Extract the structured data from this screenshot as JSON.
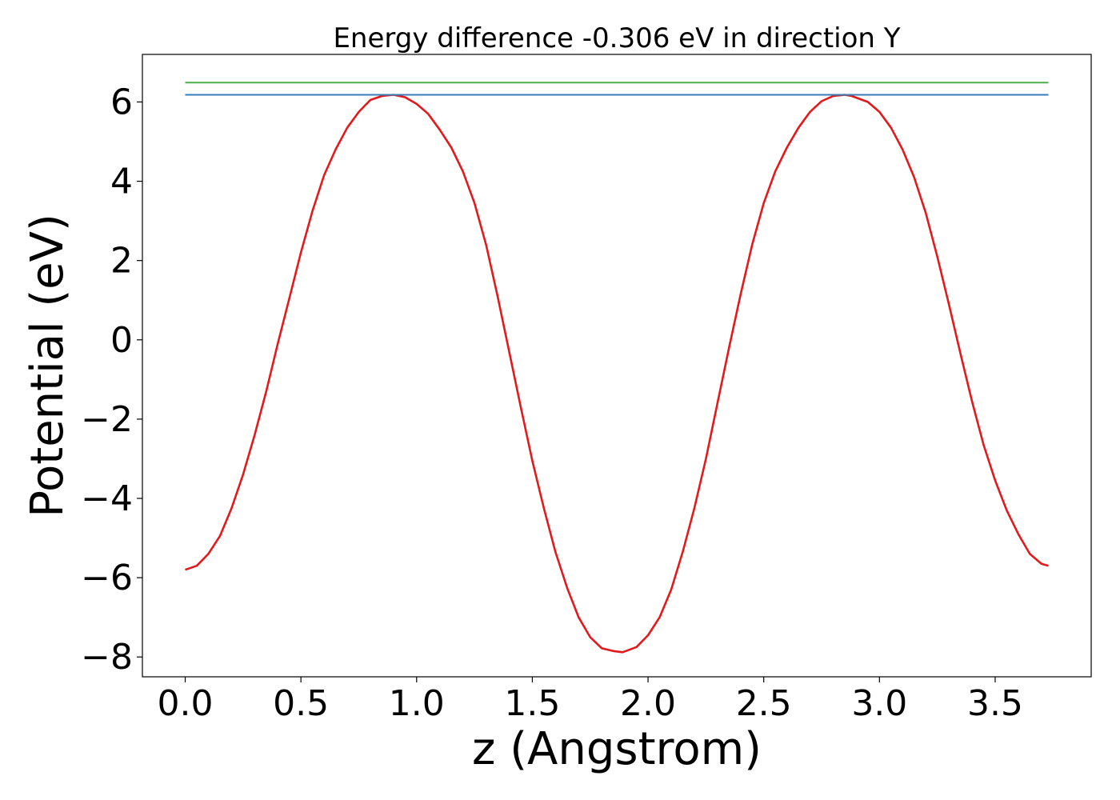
{
  "chart_data": {
    "type": "line",
    "title": "Energy difference -0.306 eV in direction Y",
    "xlabel": "z (Angstrom)",
    "ylabel": "Potential (eV)",
    "xlim": [
      -0.185,
      3.915
    ],
    "ylim": [
      -8.5,
      7.2
    ],
    "xticks": [
      0.0,
      0.5,
      1.0,
      1.5,
      2.0,
      2.5,
      3.0,
      3.5
    ],
    "xtick_labels": [
      "0.0",
      "0.5",
      "1.0",
      "1.5",
      "2.0",
      "2.5",
      "3.0",
      "3.5"
    ],
    "yticks": [
      -8,
      -6,
      -4,
      -2,
      0,
      2,
      4,
      6
    ],
    "ytick_labels": [
      "−8",
      "−6",
      "−4",
      "−2",
      "0",
      "2",
      "4",
      "6"
    ],
    "grid": false,
    "series": [
      {
        "color": "#e31a1c",
        "x": [
          0.0,
          0.05,
          0.1,
          0.15,
          0.2,
          0.25,
          0.3,
          0.35,
          0.4,
          0.45,
          0.5,
          0.55,
          0.6,
          0.65,
          0.7,
          0.75,
          0.8,
          0.85,
          0.9,
          0.95,
          1.0,
          1.05,
          1.1,
          1.15,
          1.2,
          1.25,
          1.3,
          1.35,
          1.4,
          1.45,
          1.5,
          1.55,
          1.6,
          1.65,
          1.7,
          1.75,
          1.8,
          1.85,
          1.89,
          1.95,
          2.0,
          2.05,
          2.1,
          2.15,
          2.2,
          2.25,
          2.3,
          2.35,
          2.4,
          2.45,
          2.5,
          2.55,
          2.6,
          2.65,
          2.7,
          2.75,
          2.8,
          2.85,
          2.88,
          2.95,
          3.0,
          3.05,
          3.1,
          3.15,
          3.2,
          3.25,
          3.3,
          3.35,
          3.4,
          3.45,
          3.5,
          3.55,
          3.6,
          3.65,
          3.7,
          3.73
        ],
        "y": [
          -5.8,
          -5.7,
          -5.4,
          -4.95,
          -4.25,
          -3.4,
          -2.4,
          -1.3,
          -0.1,
          1.05,
          2.2,
          3.25,
          4.15,
          4.8,
          5.35,
          5.75,
          6.05,
          6.15,
          6.18,
          6.12,
          5.95,
          5.7,
          5.3,
          4.85,
          4.25,
          3.45,
          2.4,
          1.1,
          -0.3,
          -1.7,
          -3.05,
          -4.25,
          -5.35,
          -6.25,
          -7.0,
          -7.5,
          -7.78,
          -7.85,
          -7.88,
          -7.75,
          -7.45,
          -7.0,
          -6.3,
          -5.35,
          -4.25,
          -3.0,
          -1.6,
          -0.2,
          1.15,
          2.4,
          3.45,
          4.25,
          4.85,
          5.35,
          5.75,
          6.02,
          6.15,
          6.18,
          6.15,
          6.0,
          5.75,
          5.35,
          4.8,
          4.1,
          3.2,
          2.1,
          0.9,
          -0.35,
          -1.55,
          -2.65,
          -3.55,
          -4.3,
          -4.9,
          -5.4,
          -5.65,
          -5.7
        ]
      },
      {
        "color": "#4daf4a",
        "x": [
          0.0,
          3.73
        ],
        "y": [
          6.49,
          6.49
        ]
      },
      {
        "color": "#377eb8",
        "x": [
          0.0,
          3.73
        ],
        "y": [
          6.18,
          6.18
        ]
      }
    ]
  }
}
